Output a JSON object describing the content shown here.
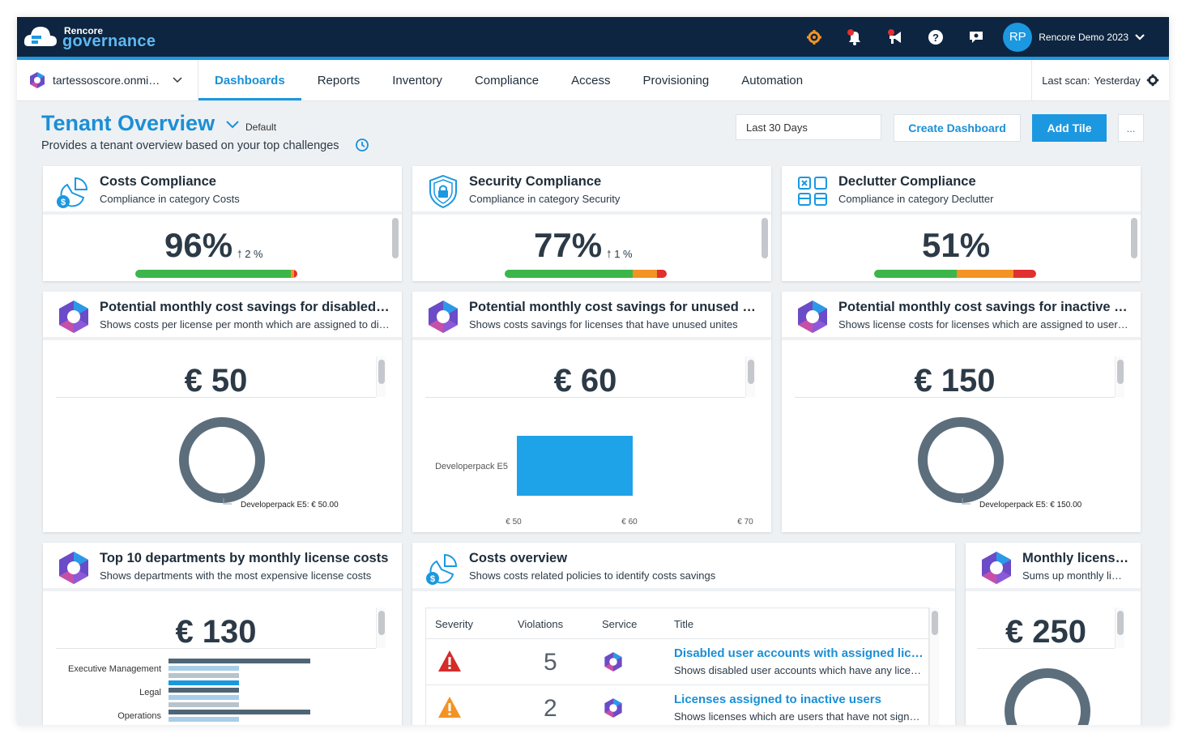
{
  "app": {
    "logo_line1": "Rencore",
    "logo_line2": "governance",
    "user_initials": "RP",
    "user_name": "Rencore Demo 2023"
  },
  "topbar_icons": [
    "settings-icon",
    "notifications-icon",
    "announcements-icon",
    "help-icon",
    "feedback-icon"
  ],
  "nav": {
    "tenant": "tartessoscore.onmi…",
    "tabs": [
      "Dashboards",
      "Reports",
      "Inventory",
      "Compliance",
      "Access",
      "Provisioning",
      "Automation"
    ],
    "active_tab": "Dashboards",
    "last_scan_label": "Last scan:",
    "last_scan_value": "Yesterday"
  },
  "page": {
    "title": "Tenant Overview",
    "default_badge": "Default",
    "subtitle": "Provides a tenant overview based on your top challenges",
    "date_range": "Last 30 Days",
    "create_dashboard": "Create Dashboard",
    "add_tile": "Add Tile",
    "more": "..."
  },
  "compliance_tiles": [
    {
      "title": "Costs Compliance",
      "subtitle": "Compliance in category Costs",
      "value": "96%",
      "delta": "2 %",
      "bar": [
        0.96,
        0.01,
        0.01
      ]
    },
    {
      "title": "Security Compliance",
      "subtitle": "Compliance in category Security",
      "value": "77%",
      "delta": "1 %",
      "bar": [
        0.77,
        0.15,
        0.06
      ]
    },
    {
      "title": "Declutter Compliance",
      "subtitle": "Compliance in category Declutter",
      "value": "51%",
      "delta": "",
      "bar": [
        0.51,
        0.35,
        0.14
      ]
    }
  ],
  "savings_tiles": [
    {
      "title": "Potential monthly cost savings for disabled …",
      "subtitle": "Shows costs per license per month which are assigned to di…",
      "value": "€ 50",
      "legend": "Developerpack E5: € 50.00"
    },
    {
      "title": "Potential monthly cost savings for unused u…",
      "subtitle": "Shows costs savings for licenses that have unused unites",
      "value": "€ 60"
    },
    {
      "title": "Potential monthly cost savings for inactive …",
      "subtitle": "Shows license costs for licenses which are assigned to user …",
      "value": "€ 150",
      "legend": "Developerpack E5: € 150.00"
    }
  ],
  "chart_data": {
    "type": "bar",
    "orientation": "horizontal",
    "categories": [
      "Developerpack E5"
    ],
    "values": [
      60
    ],
    "xticks": [
      "€ 50",
      "€ 60",
      "€ 70"
    ],
    "xlim": [
      50,
      70
    ]
  },
  "dept_tile": {
    "title": "Top 10 departments by monthly license costs",
    "subtitle": "Shows departments with the most expensive license costs",
    "value": "€ 130",
    "departments": [
      "Executive Management",
      "Legal",
      "Operations"
    ]
  },
  "costs_overview": {
    "title": "Costs overview",
    "subtitle": "Shows costs related policies to identify costs savings",
    "columns": [
      "Severity",
      "Violations",
      "Service",
      "Title"
    ],
    "rows": [
      {
        "severity": "high",
        "violations": "5",
        "title": "Disabled user accounts with assigned lice…",
        "desc": "Shows disabled user accounts which have any lice…"
      },
      {
        "severity": "medium",
        "violations": "2",
        "title": "Licenses assigned to inactive users",
        "desc": "Shows licenses which are users that have not sign…"
      }
    ]
  },
  "monthly_tile": {
    "title": "Monthly licens…",
    "subtitle": "Sums up monthly li…",
    "value": "€ 250"
  },
  "colors": {
    "navy": "#0d2540",
    "accent": "#1b98e0",
    "green": "#3cb54a",
    "orange": "#f39323",
    "red": "#e03030",
    "donut": "#5c6e7c"
  }
}
